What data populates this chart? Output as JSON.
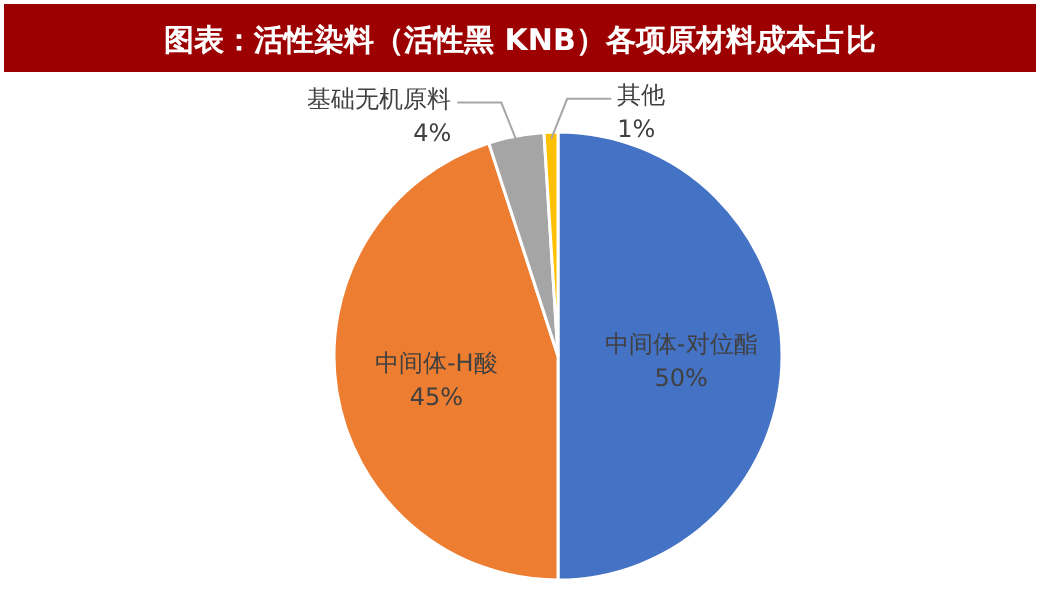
{
  "chart_data": {
    "type": "pie",
    "title": "图表：活性染料（活性黑 KNB）各项原材料成本占比",
    "categories": [
      "中间体-对位酯",
      "中间体-H酸",
      "基础无机原料",
      "其他"
    ],
    "values": [
      50,
      45,
      4,
      1
    ],
    "value_labels": [
      "50%",
      "45%",
      "4%",
      "1%"
    ],
    "colors": [
      "#4472c4",
      "#ed7d31",
      "#a5a5a5",
      "#ffc000"
    ],
    "legend": false
  }
}
